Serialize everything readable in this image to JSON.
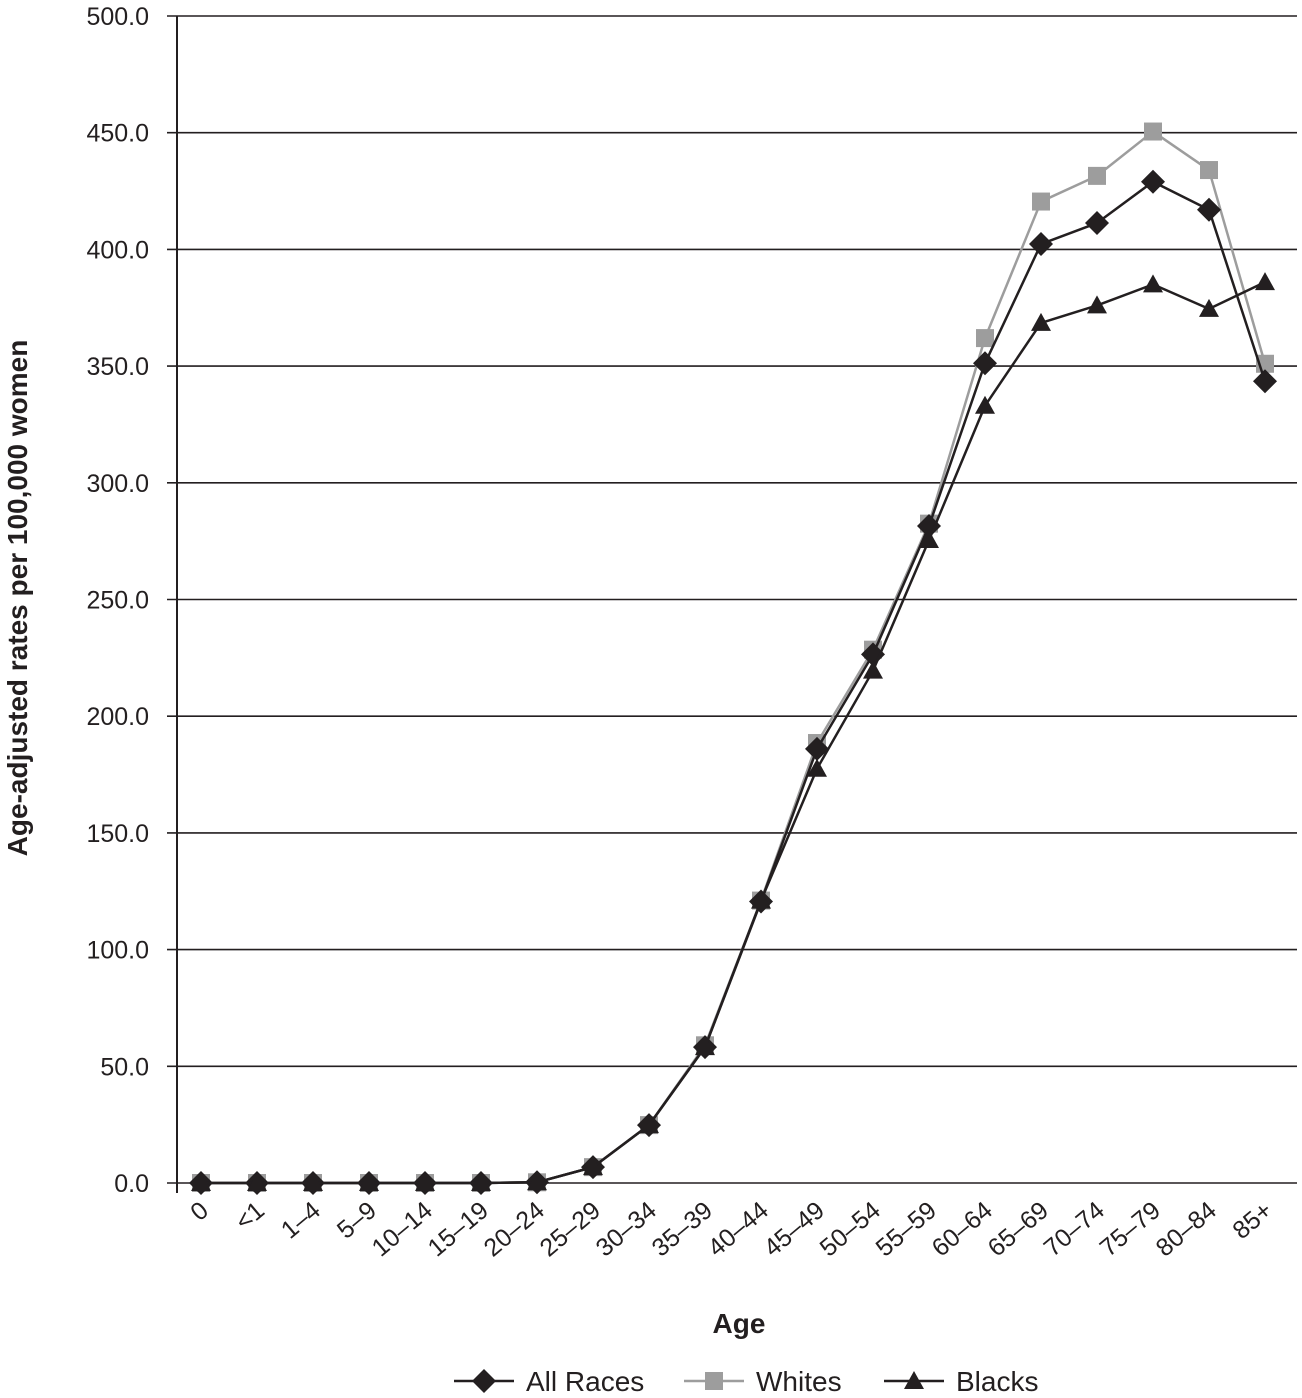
{
  "chart_data": {
    "type": "line",
    "xlabel": "Age",
    "ylabel": "Age-adjusted rates per 100,000 women",
    "ylim": [
      0,
      500
    ],
    "yticks": [
      "0.0",
      "50.0",
      "100.0",
      "150.0",
      "200.0",
      "250.0",
      "300.0",
      "350.0",
      "400.0",
      "450.0",
      "500.0"
    ],
    "grid": "horizontal",
    "legend_position": "bottom",
    "categories": [
      "0",
      "<1",
      "1–4",
      "5–9",
      "10–14",
      "15–19",
      "20–24",
      "25–29",
      "30–34",
      "35–39",
      "40–44",
      "45–49",
      "50–54",
      "55–59",
      "60–64",
      "65–69",
      "70–74",
      "75–79",
      "80–84",
      "85+"
    ],
    "series": [
      {
        "name": "All Races",
        "marker": "diamond",
        "color": "#231f20",
        "values": [
          0.0,
          0.0,
          0.0,
          0.0,
          0.0,
          0.0,
          0.3,
          6.8,
          24.8,
          58.2,
          120.6,
          186.0,
          226.5,
          281.5,
          351.2,
          402.3,
          411.3,
          429.0,
          417.0,
          343.5
        ]
      },
      {
        "name": "Whites",
        "marker": "square",
        "color": "#9d9d9d",
        "values": [
          0.0,
          0.0,
          0.0,
          0.0,
          0.0,
          0.0,
          0.3,
          6.8,
          24.8,
          59.0,
          121.0,
          188.5,
          228.5,
          282.5,
          362.0,
          420.5,
          431.5,
          450.5,
          434.0,
          351.0
        ]
      },
      {
        "name": "Blacks",
        "marker": "triangle",
        "color": "#231f20",
        "values": [
          0.0,
          0.0,
          0.0,
          0.0,
          0.0,
          0.0,
          0.3,
          6.8,
          24.8,
          58.2,
          121.0,
          177.5,
          219.5,
          275.5,
          333.0,
          368.5,
          376.0,
          385.0,
          374.5,
          386.0
        ]
      }
    ]
  }
}
